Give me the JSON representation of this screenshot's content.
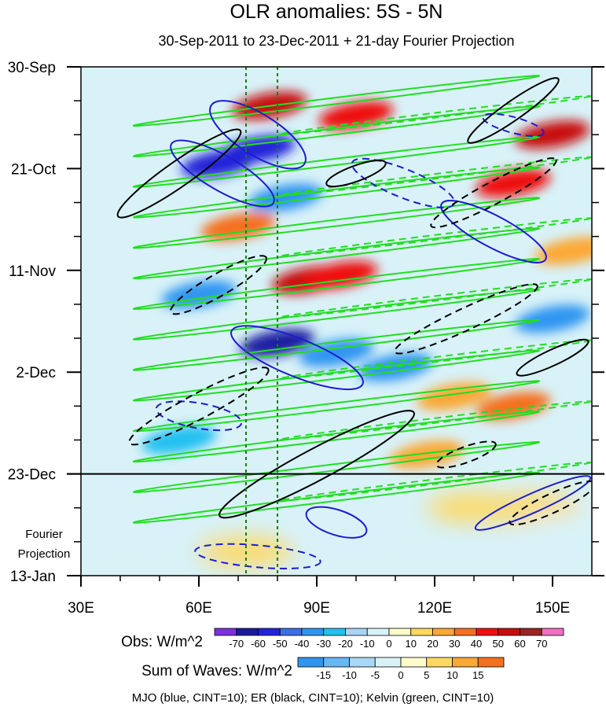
{
  "chart_data": {
    "type": "heatmap",
    "title": "OLR anomalies: 5S - 5N",
    "subtitle": "30-Sep-2011 to 23-Dec-2011 + 21-day Fourier Projection",
    "x_ticks": [
      {
        "value": 30,
        "label": "30E"
      },
      {
        "value": 60,
        "label": "60E"
      },
      {
        "value": 90,
        "label": "90E"
      },
      {
        "value": 120,
        "label": "120E"
      },
      {
        "value": 150,
        "label": "150E"
      }
    ],
    "xlim": [
      30,
      160
    ],
    "y_ticks": [
      {
        "day": 0,
        "label": "30-Sep"
      },
      {
        "day": 21,
        "label": "21-Oct"
      },
      {
        "day": 42,
        "label": "11-Nov"
      },
      {
        "day": 63,
        "label": "2-Dec"
      },
      {
        "day": 84,
        "label": "23-Dec"
      },
      {
        "day": 105,
        "label": "13-Jan"
      }
    ],
    "ylim_days": [
      0,
      105
    ],
    "projection_start_day": 84,
    "projection_label": [
      "Fourier",
      "Projection"
    ],
    "reference_longitudes": [
      72,
      80
    ],
    "obs_colorbar": {
      "label": "Obs: W/m^2",
      "levels": [
        -70,
        -60,
        -50,
        -40,
        -30,
        -20,
        -10,
        0,
        10,
        20,
        30,
        40,
        50,
        60,
        70
      ],
      "colors": [
        "#7b2fe0",
        "#1a1aa0",
        "#2323d8",
        "#3a6fe8",
        "#2e95f0",
        "#22c0f0",
        "#a8d4f5",
        "#d8f2f8",
        "#fffccc",
        "#fed860",
        "#fba834",
        "#f5701e",
        "#ee1010",
        "#c80c0c",
        "#9a2424",
        "#f070c0"
      ]
    },
    "waves_colorbar": {
      "label": "Sum of Waves: W/m^2",
      "levels": [
        -15,
        -10,
        -5,
        0,
        5,
        10,
        15
      ],
      "colors": [
        "#2e95f0",
        "#66b8f5",
        "#a8d8f6",
        "#d8f2f8",
        "#fffccc",
        "#fed860",
        "#fba834",
        "#f5701e"
      ]
    },
    "contour_legend": "MJO (blue, CINT=10); ER (black, CINT=10); Kelvin (green, CINT=10)",
    "series": [
      {
        "name": "MJO",
        "color": "#1c1cd0",
        "cint": 10
      },
      {
        "name": "ER",
        "color": "#000000",
        "cint": 10
      },
      {
        "name": "Kelvin",
        "color": "#22dd22",
        "cint": 10
      }
    ],
    "anomaly_features": [
      {
        "lon": 78,
        "day": 8,
        "value": 50
      },
      {
        "lon": 100,
        "day": 10,
        "value": 40
      },
      {
        "lon": 150,
        "day": 14,
        "value": 50
      },
      {
        "lon": 140,
        "day": 24,
        "value": 45
      },
      {
        "lon": 75,
        "day": 17,
        "value": -60
      },
      {
        "lon": 65,
        "day": 20,
        "value": -55
      },
      {
        "lon": 82,
        "day": 27,
        "value": -40
      },
      {
        "lon": 70,
        "day": 33,
        "value": 30
      },
      {
        "lon": 88,
        "day": 44,
        "value": 50
      },
      {
        "lon": 96,
        "day": 43,
        "value": 40
      },
      {
        "lon": 80,
        "day": 57,
        "value": -70
      },
      {
        "lon": 95,
        "day": 59,
        "value": -40
      },
      {
        "lon": 110,
        "day": 62,
        "value": -40
      },
      {
        "lon": 150,
        "day": 52,
        "value": -40
      },
      {
        "lon": 60,
        "day": 47,
        "value": -35
      },
      {
        "lon": 55,
        "day": 77,
        "value": -30
      },
      {
        "lon": 125,
        "day": 68,
        "value": 20
      },
      {
        "lon": 118,
        "day": 80,
        "value": 25
      },
      {
        "lon": 140,
        "day": 70,
        "value": 30
      },
      {
        "lon": 155,
        "day": 38,
        "value": 20
      },
      {
        "lon": 72,
        "day": 100,
        "value": 15
      },
      {
        "lon": 130,
        "day": 91,
        "value": 10
      },
      {
        "lon": 145,
        "day": 91,
        "value": 10
      },
      {
        "lon": 95,
        "day": 93,
        "value": -10
      },
      {
        "lon": 42,
        "day": 92,
        "value": -5
      },
      {
        "lon": 155,
        "day": 95,
        "value": -5
      }
    ]
  }
}
